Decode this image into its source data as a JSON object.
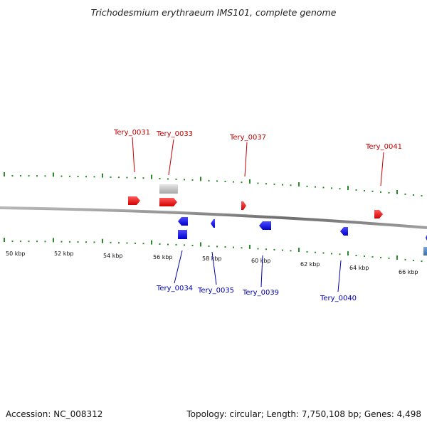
{
  "title": "Trichodesmium erythraeum IMS101, complete genome",
  "footer": {
    "accession": "Accession: NC_008312",
    "summary": "Topology: circular; Length: 7,750,108 bp; Genes: 4,498"
  },
  "scale_labels": [
    "50 kbp",
    "52 kbp",
    "54 kbp",
    "56 kbp",
    "58 kbp",
    "60 kbp",
    "62 kbp",
    "64 kbp",
    "66 kbp"
  ],
  "genes_forward": [
    "Tery_0031",
    "Tery_0033",
    "Tery_0037",
    "Tery_0041"
  ],
  "genes_reverse": [
    "Tery_0034",
    "Tery_0035",
    "Tery_0039",
    "Tery_0040"
  ],
  "colors": {
    "forward": "#ee1111",
    "reverse": "#1111ee",
    "other": "#c8c8c8",
    "tick": "#2a8a2a",
    "backbone": "#8a8a8a"
  }
}
